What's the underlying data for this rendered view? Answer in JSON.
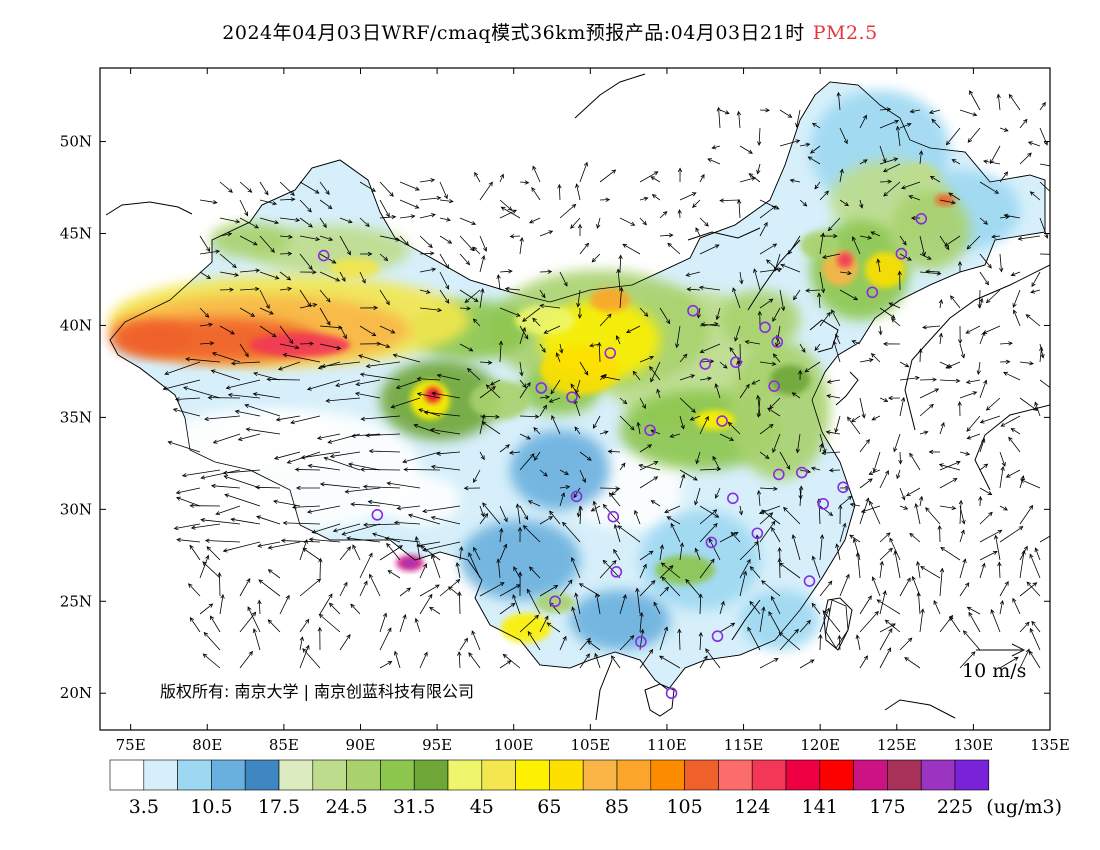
{
  "title": {
    "main": "2024年04月03日WRF/cmaq模式36km预报产品:04月03日21时",
    "pollutant": "PM2.5"
  },
  "map": {
    "lat_ticks": [
      "50N",
      "45N",
      "40N",
      "35N",
      "30N",
      "25N",
      "20N"
    ],
    "lon_ticks": [
      "75E",
      "80E",
      "85E",
      "90E",
      "95E",
      "100E",
      "105E",
      "110E",
      "115E",
      "120E",
      "125E",
      "130E",
      "135E"
    ],
    "lon_range": [
      73,
      135
    ],
    "lat_range": [
      18,
      54
    ],
    "copyright": "版权所有: 南京大学 | 南京创蓝科技有限公司",
    "wind_legend": "10 m/s"
  },
  "colorbar": {
    "colors": [
      "#ffffff",
      "#d6effa",
      "#9dd8f2",
      "#6ab0de",
      "#3f87c2",
      "#dcebc0",
      "#bedd8c",
      "#a9d26d",
      "#8cc64d",
      "#6ea637",
      "#eef76b",
      "#f3e64e",
      "#fdf000",
      "#fde000",
      "#f9b647",
      "#fba52a",
      "#fd8b00",
      "#f0602b",
      "#fd6c6c",
      "#f23757",
      "#ee0042",
      "#fd0000",
      "#cd1383",
      "#a83159",
      "#9c34c2",
      "#7a22d9"
    ],
    "labels": [
      "3.5",
      "10.5",
      "17.5",
      "24.5",
      "31.5",
      "45",
      "65",
      "85",
      "105",
      "124",
      "141",
      "175",
      "225"
    ],
    "unit": "(ug/m3)"
  },
  "stations": [
    [
      87.6,
      43.8
    ],
    [
      101.8,
      36.6
    ],
    [
      103.8,
      36.1
    ],
    [
      106.3,
      38.5
    ],
    [
      111.7,
      40.8
    ],
    [
      116.4,
      39.9
    ],
    [
      117.2,
      39.1
    ],
    [
      114.5,
      38.0
    ],
    [
      112.5,
      37.9
    ],
    [
      117.0,
      36.7
    ],
    [
      113.6,
      34.8
    ],
    [
      108.9,
      34.3
    ],
    [
      104.1,
      30.7
    ],
    [
      106.5,
      29.6
    ],
    [
      106.7,
      26.6
    ],
    [
      102.7,
      25.0
    ],
    [
      108.3,
      22.8
    ],
    [
      110.3,
      20.0
    ],
    [
      113.3,
      23.1
    ],
    [
      112.9,
      28.2
    ],
    [
      115.9,
      28.7
    ],
    [
      114.3,
      30.6
    ],
    [
      117.3,
      31.9
    ],
    [
      118.8,
      32.0
    ],
    [
      120.2,
      30.3
    ],
    [
      121.5,
      31.2
    ],
    [
      119.3,
      26.1
    ],
    [
      123.4,
      41.8
    ],
    [
      125.3,
      43.9
    ],
    [
      126.6,
      45.8
    ],
    [
      91.1,
      29.7
    ]
  ]
}
